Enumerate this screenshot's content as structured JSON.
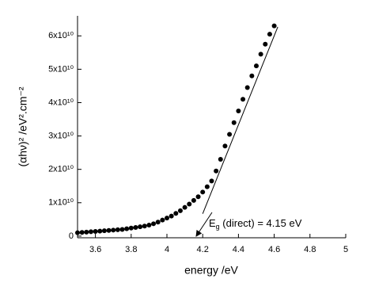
{
  "chart_data": {
    "type": "scatter",
    "x_label": "energy /eV",
    "y_label": "(αhν)² /eV².cm⁻²",
    "annotation": {
      "symbol": "E",
      "subscript": "g",
      "text": " (direct) = 4.15 eV"
    },
    "xlim": [
      3.5,
      5.0
    ],
    "ylim": [
      -500000000.0,
      66000000000.0
    ],
    "xticks": [
      3.6,
      3.8,
      4.0,
      4.2,
      4.4,
      4.6,
      4.8,
      5.0
    ],
    "yticks": [
      0,
      {
        "value": 10000000000.0,
        "label": "1x10¹⁰"
      },
      {
        "value": 20000000000.0,
        "label": "2x10¹⁰"
      },
      {
        "value": 30000000000.0,
        "label": "3x10¹⁰"
      },
      {
        "value": 40000000000.0,
        "label": "4x10¹⁰"
      },
      {
        "value": 50000000000.0,
        "label": "5x10¹⁰"
      },
      {
        "value": 60000000000.0,
        "label": "6x10¹⁰"
      }
    ],
    "series": [
      {
        "color": "#000000",
        "x": [
          3.5,
          3.525,
          3.55,
          3.575,
          3.6,
          3.625,
          3.65,
          3.675,
          3.7,
          3.725,
          3.75,
          3.775,
          3.8,
          3.825,
          3.85,
          3.875,
          3.9,
          3.925,
          3.95,
          3.975,
          4.0,
          4.025,
          4.05,
          4.075,
          4.1,
          4.125,
          4.15,
          4.175,
          4.2,
          4.225,
          4.25,
          4.275,
          4.3,
          4.325,
          4.35,
          4.375,
          4.4,
          4.425,
          4.45,
          4.475,
          4.5,
          4.525,
          4.55,
          4.575,
          4.6
        ],
        "values": [
          1000000000.0,
          1100000000.0,
          1200000000.0,
          1300000000.0,
          1400000000.0,
          1500000000.0,
          1600000000.0,
          1700000000.0,
          1800000000.0,
          1900000000.0,
          2000000000.0,
          2200000000.0,
          2400000000.0,
          2600000000.0,
          2800000000.0,
          3000000000.0,
          3300000000.0,
          3700000000.0,
          4200000000.0,
          4800000000.0,
          5400000000.0,
          6000000000.0,
          6800000000.0,
          7600000000.0,
          8600000000.0,
          9600000000.0,
          10700000000.0,
          11800000000.0,
          13200000000.0,
          14800000000.0,
          16500000000.0,
          19500000000.0,
          23000000000.0,
          27000000000.0,
          30500000000.0,
          34000000000.0,
          37500000000.0,
          41000000000.0,
          44500000000.0,
          48000000000.0,
          51000000000.0,
          54500000000.0,
          57500000000.0,
          60500000000.0,
          63000000000.0
        ]
      },
      {
        "type": "line",
        "color": "#000000",
        "x": [
          4.2,
          4.62
        ],
        "values": [
          6700000000.0,
          62700000000.0
        ]
      }
    ]
  }
}
